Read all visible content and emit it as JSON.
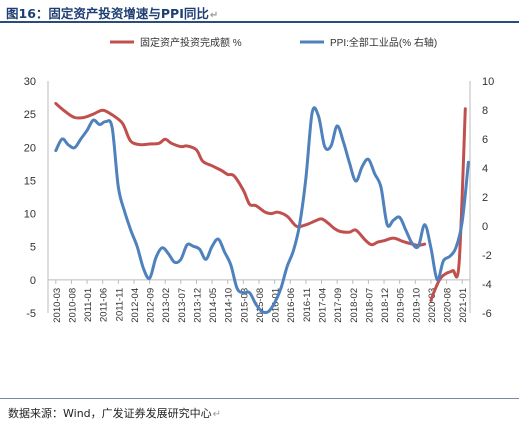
{
  "header": {
    "title": "图16：固定资产投资增速与PPI同比",
    "title_mark": "↵"
  },
  "footer": {
    "source": "数据来源：Wind，广发证券发展研究中心",
    "source_mark": "↵"
  },
  "colors": {
    "fai": "#c0504d",
    "ppi": "#4f81bd",
    "title": "#1f3f73"
  },
  "chart_data": {
    "type": "line",
    "title": "",
    "xlabel": "",
    "ylabel": "",
    "legend_position": "top",
    "grid": false,
    "y_left": {
      "min": -5,
      "max": 30,
      "ticks": [
        -5,
        0,
        5,
        10,
        15,
        20,
        25,
        30
      ]
    },
    "y_right": {
      "min": -6,
      "max": 10,
      "ticks": [
        -6,
        -4,
        -2,
        0,
        2,
        4,
        6,
        8,
        10
      ]
    },
    "x_tick_labels": [
      "2010-03",
      "2010-08",
      "2011-01",
      "2011-06",
      "2011-11",
      "2012-04",
      "2012-09",
      "2013-02",
      "2013-07",
      "2013-12",
      "2014-05",
      "2014-10",
      "2015-03",
      "2015-08",
      "2016-01",
      "2016-06",
      "2016-11",
      "2017-04",
      "2017-09",
      "2018-02",
      "2018-07",
      "2018-12",
      "2019-05",
      "2019-10",
      "2020-03",
      "2020-08",
      "2021-01"
    ],
    "series": [
      {
        "name": "固定资产投资完成额 %",
        "axis": "left",
        "color": "#c0504d",
        "points": [
          [
            "2010-03",
            26.6
          ],
          [
            "2010-06",
            25.4
          ],
          [
            "2010-09",
            24.5
          ],
          [
            "2010-12",
            24.5
          ],
          [
            "2011-03",
            25.0
          ],
          [
            "2011-06",
            25.6
          ],
          [
            "2011-09",
            24.9
          ],
          [
            "2011-12",
            23.8
          ],
          [
            "2012-01",
            23.0
          ],
          [
            "2012-03",
            20.9
          ],
          [
            "2012-06",
            20.4
          ],
          [
            "2012-09",
            20.5
          ],
          [
            "2012-12",
            20.6
          ],
          [
            "2013-02",
            21.2
          ],
          [
            "2013-04",
            20.6
          ],
          [
            "2013-07",
            20.1
          ],
          [
            "2013-09",
            20.2
          ],
          [
            "2013-12",
            19.6
          ],
          [
            "2014-02",
            17.9
          ],
          [
            "2014-05",
            17.2
          ],
          [
            "2014-08",
            16.5
          ],
          [
            "2014-10",
            15.9
          ],
          [
            "2014-12",
            15.7
          ],
          [
            "2015-03",
            13.5
          ],
          [
            "2015-05",
            11.4
          ],
          [
            "2015-07",
            11.2
          ],
          [
            "2015-10",
            10.2
          ],
          [
            "2015-12",
            10.0
          ],
          [
            "2016-02",
            10.2
          ],
          [
            "2016-05",
            9.6
          ],
          [
            "2016-08",
            8.1
          ],
          [
            "2016-11",
            8.3
          ],
          [
            "2017-02",
            8.9
          ],
          [
            "2017-04",
            9.2
          ],
          [
            "2017-06",
            8.6
          ],
          [
            "2017-08",
            7.8
          ],
          [
            "2017-10",
            7.3
          ],
          [
            "2018-01",
            7.2
          ],
          [
            "2018-03",
            7.5
          ],
          [
            "2018-06",
            6.0
          ],
          [
            "2018-08",
            5.3
          ],
          [
            "2018-10",
            5.7
          ],
          [
            "2018-12",
            5.9
          ],
          [
            "2019-03",
            6.3
          ],
          [
            "2019-06",
            5.8
          ],
          [
            "2019-09",
            5.4
          ],
          [
            "2019-11",
            5.2
          ],
          [
            "2020-01",
            5.4
          ],
          null,
          [
            "2020-03",
            -3.1
          ],
          [
            "2020-04",
            -1.8
          ],
          [
            "2020-06",
            0.2
          ],
          [
            "2020-08",
            1.0
          ],
          [
            "2020-10",
            1.4
          ],
          [
            "2020-12",
            2.5
          ],
          [
            "2021-02",
            25.8
          ]
        ]
      },
      {
        "name": "PPI:全部工业品(% 右轴)",
        "axis": "right",
        "color": "#4f81bd",
        "points": [
          [
            "2010-03",
            5.2
          ],
          [
            "2010-05",
            6.0
          ],
          [
            "2010-07",
            5.6
          ],
          [
            "2010-09",
            5.4
          ],
          [
            "2010-11",
            6.0
          ],
          [
            "2011-01",
            6.6
          ],
          [
            "2011-03",
            7.3
          ],
          [
            "2011-05",
            7.0
          ],
          [
            "2011-07",
            7.2
          ],
          [
            "2011-09",
            6.8
          ],
          [
            "2011-11",
            2.7
          ],
          [
            "2012-01",
            1.0
          ],
          [
            "2012-03",
            -0.3
          ],
          [
            "2012-05",
            -1.4
          ],
          [
            "2012-07",
            -2.9
          ],
          [
            "2012-09",
            -3.6
          ],
          [
            "2012-11",
            -2.2
          ],
          [
            "2013-01",
            -1.5
          ],
          [
            "2013-03",
            -1.9
          ],
          [
            "2013-05",
            -2.5
          ],
          [
            "2013-07",
            -2.3
          ],
          [
            "2013-09",
            -1.3
          ],
          [
            "2013-11",
            -1.4
          ],
          [
            "2014-01",
            -1.6
          ],
          [
            "2014-03",
            -2.3
          ],
          [
            "2014-05",
            -1.4
          ],
          [
            "2014-07",
            -0.9
          ],
          [
            "2014-09",
            -1.8
          ],
          [
            "2014-11",
            -2.7
          ],
          [
            "2015-01",
            -4.3
          ],
          [
            "2015-03",
            -4.6
          ],
          [
            "2015-05",
            -4.6
          ],
          [
            "2015-07",
            -5.4
          ],
          [
            "2015-09",
            -5.9
          ],
          [
            "2015-11",
            -5.9
          ],
          [
            "2016-01",
            -5.3
          ],
          [
            "2016-03",
            -4.3
          ],
          [
            "2016-05",
            -2.8
          ],
          [
            "2016-07",
            -1.7
          ],
          [
            "2016-09",
            0.1
          ],
          [
            "2016-11",
            3.3
          ],
          [
            "2017-01",
            7.8
          ],
          [
            "2017-03",
            7.6
          ],
          [
            "2017-05",
            5.5
          ],
          [
            "2017-07",
            5.5
          ],
          [
            "2017-09",
            6.9
          ],
          [
            "2017-11",
            5.8
          ],
          [
            "2018-01",
            4.3
          ],
          [
            "2018-03",
            3.1
          ],
          [
            "2018-05",
            4.1
          ],
          [
            "2018-07",
            4.6
          ],
          [
            "2018-09",
            3.6
          ],
          [
            "2018-11",
            2.7
          ],
          [
            "2019-01",
            0.1
          ],
          [
            "2019-03",
            0.4
          ],
          [
            "2019-05",
            0.6
          ],
          [
            "2019-07",
            -0.3
          ],
          [
            "2019-09",
            -1.2
          ],
          [
            "2019-11",
            -1.4
          ],
          [
            "2020-01",
            0.1
          ],
          [
            "2020-03",
            -1.5
          ],
          [
            "2020-05",
            -3.7
          ],
          [
            "2020-07",
            -2.4
          ],
          [
            "2020-09",
            -2.1
          ],
          [
            "2020-11",
            -1.5
          ],
          [
            "2021-01",
            0.3
          ],
          [
            "2021-03",
            4.4
          ]
        ]
      }
    ]
  }
}
